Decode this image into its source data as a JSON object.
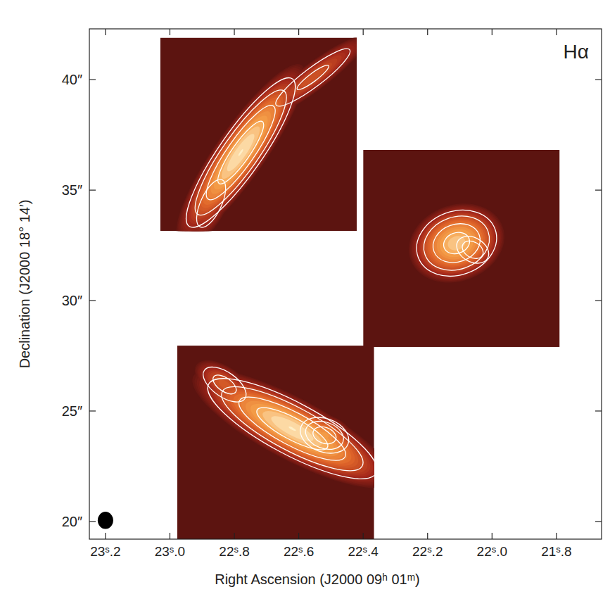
{
  "chart_data": {
    "type": "image",
    "title": "Hα",
    "x_label": "Right Ascension (J2000 09ʰ 01ᵐ)",
    "y_label": "Declination (J2000 18° 14′)",
    "xlim": [
      23.25,
      21.66
    ],
    "ylim": [
      19.2,
      42.3
    ],
    "xticks": [
      {
        "value": 23.2,
        "label": "23ˢ.2"
      },
      {
        "value": 23.0,
        "label": "23ˢ.0"
      },
      {
        "value": 22.8,
        "label": "22ˢ.8"
      },
      {
        "value": 22.6,
        "label": "22ˢ.6"
      },
      {
        "value": 22.4,
        "label": "22ˢ.4"
      },
      {
        "value": 22.2,
        "label": "22ˢ.2"
      },
      {
        "value": 22.0,
        "label": "22ˢ.0"
      },
      {
        "value": 21.8,
        "label": "21ˢ.8"
      }
    ],
    "yticks": [
      {
        "value": 20,
        "label": "20″"
      },
      {
        "value": 25,
        "label": "25″"
      },
      {
        "value": 30,
        "label": "30″"
      },
      {
        "value": 35,
        "label": "35″"
      },
      {
        "value": 40,
        "label": "40″"
      }
    ],
    "contour_levels": [
      3,
      6,
      12,
      20
    ],
    "panels": [
      {
        "ra": [
          23.03,
          22.42
        ],
        "dec": [
          33.15,
          41.9
        ],
        "components": [
          {
            "ra": 22.78,
            "dec": 36.7,
            "a": 1.9,
            "b": 0.45,
            "angle": 55,
            "peak": 30
          },
          {
            "ra": 22.556,
            "dec": 40.1,
            "a": 1.6,
            "b": 0.33,
            "angle": 37,
            "peak": 7
          },
          {
            "ra": 22.872,
            "dec": 34.4,
            "a": 1.0,
            "b": 0.4,
            "angle": 65,
            "peak": 6
          }
        ]
      },
      {
        "ra": [
          22.4,
          21.79
        ],
        "dec": [
          27.9,
          36.82
        ],
        "components": [
          {
            "ra": 22.11,
            "dec": 32.6,
            "a": 0.9,
            "b": 0.7,
            "angle": 20,
            "peak": 25
          },
          {
            "ra": 22.06,
            "dec": 32.3,
            "a": 0.5,
            "b": 0.35,
            "angle": -30,
            "peak": 10
          }
        ]
      },
      {
        "ra": [
          22.977,
          22.366
        ],
        "dec": [
          19.2,
          27.96
        ],
        "components": [
          {
            "ra": 22.62,
            "dec": 24.2,
            "a": 2.0,
            "b": 0.55,
            "angle": -28,
            "peak": 30
          },
          {
            "ra": 22.52,
            "dec": 23.9,
            "a": 0.6,
            "b": 0.4,
            "angle": -20,
            "peak": 18
          },
          {
            "ra": 22.83,
            "dec": 26.2,
            "a": 0.8,
            "b": 0.4,
            "angle": -35,
            "peak": 8
          }
        ]
      }
    ],
    "beam": {
      "ra": 23.2,
      "dec": 20.05,
      "major": 0.78,
      "minor": 0.7
    }
  }
}
